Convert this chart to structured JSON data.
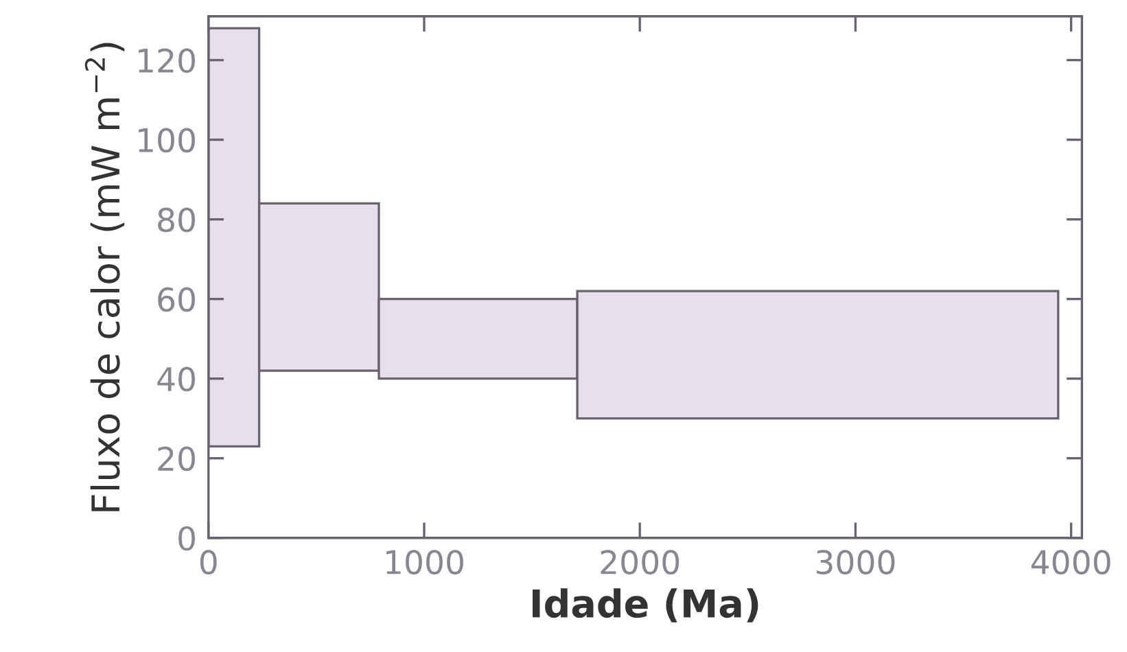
{
  "chart_data": {
    "type": "histogram",
    "xlabel": "Idade (Ma)",
    "ylabel": "Fluxo de calor (mW m$^{−2}$)",
    "bins": [
      0,
      235,
      790,
      1710,
      3940
    ],
    "values": [
      105,
      42,
      20,
      32
    ],
    "base": [
      23,
      42,
      40,
      30
    ],
    "color": "#e6dfec",
    "xlim": [
      0,
      4050
    ],
    "xticks": [
      0,
      1000,
      2000,
      3000,
      4000
    ],
    "ylim": [
      0,
      131
    ],
    "yticks": [
      0,
      20,
      40,
      60,
      80,
      100,
      120
    ],
    "grid": false
  }
}
